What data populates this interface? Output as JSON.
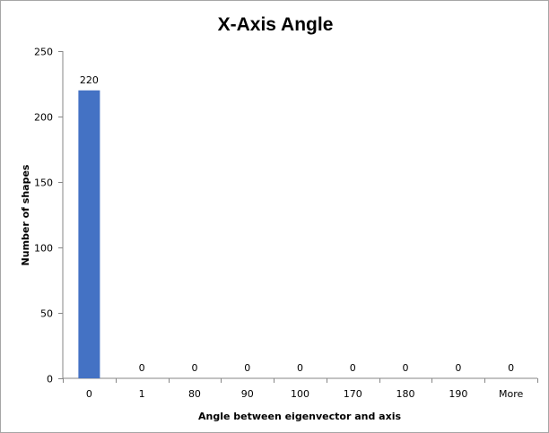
{
  "chart_data": {
    "type": "bar",
    "title": "X-Axis Angle",
    "xlabel": "Angle between eigenvector and axis",
    "ylabel": "Number of shapes",
    "categories": [
      "0",
      "1",
      "80",
      "90",
      "100",
      "170",
      "180",
      "190",
      "More"
    ],
    "values": [
      220,
      0,
      0,
      0,
      0,
      0,
      0,
      0,
      0
    ],
    "ylim": [
      0,
      250
    ],
    "yticks": [
      0,
      50,
      100,
      150,
      200,
      250
    ],
    "grid": false,
    "legend": "none",
    "bar_color": "#4472c4",
    "data_labels": true
  }
}
